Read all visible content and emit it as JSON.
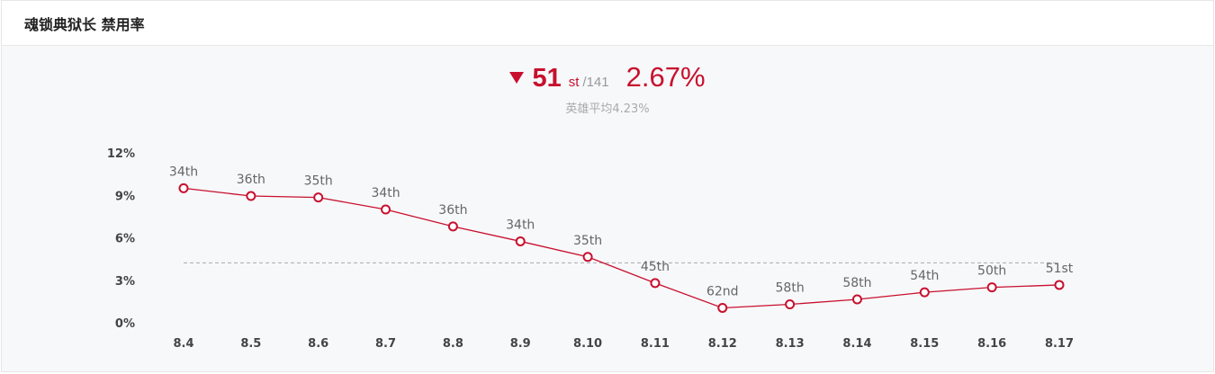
{
  "header": {
    "title": "魂锁典狱长 禁用率"
  },
  "summary": {
    "trend_icon": "down-triangle-icon",
    "rank": "51",
    "rank_suffix": "st",
    "rank_total": "/141",
    "rate": "2.67%",
    "average_text": "英雄平均4.23%"
  },
  "colors": {
    "accent": "#c8102e",
    "average_line": "#aaaaaa"
  },
  "chart_data": {
    "type": "line",
    "title": "",
    "xlabel": "",
    "ylabel": "",
    "categories": [
      "8.4",
      "8.5",
      "8.6",
      "8.7",
      "8.8",
      "8.9",
      "8.10",
      "8.11",
      "8.12",
      "8.13",
      "8.14",
      "8.15",
      "8.16",
      "8.17"
    ],
    "series": [
      {
        "values": [
          9.5,
          8.95,
          8.85,
          8.0,
          6.8,
          5.75,
          4.65,
          2.8,
          1.05,
          1.3,
          1.65,
          2.15,
          2.5,
          2.67
        ],
        "labels": [
          "34th",
          "36th",
          "35th",
          "34th",
          "36th",
          "34th",
          "35th",
          "45th",
          "62nd",
          "58th",
          "58th",
          "54th",
          "50th",
          "51st"
        ]
      }
    ],
    "reference_line": {
      "value": 4.23
    },
    "yticks": [
      "12%",
      "9%",
      "6%",
      "3%",
      "0%"
    ],
    "ylim": [
      0,
      12
    ],
    "grid": false
  }
}
